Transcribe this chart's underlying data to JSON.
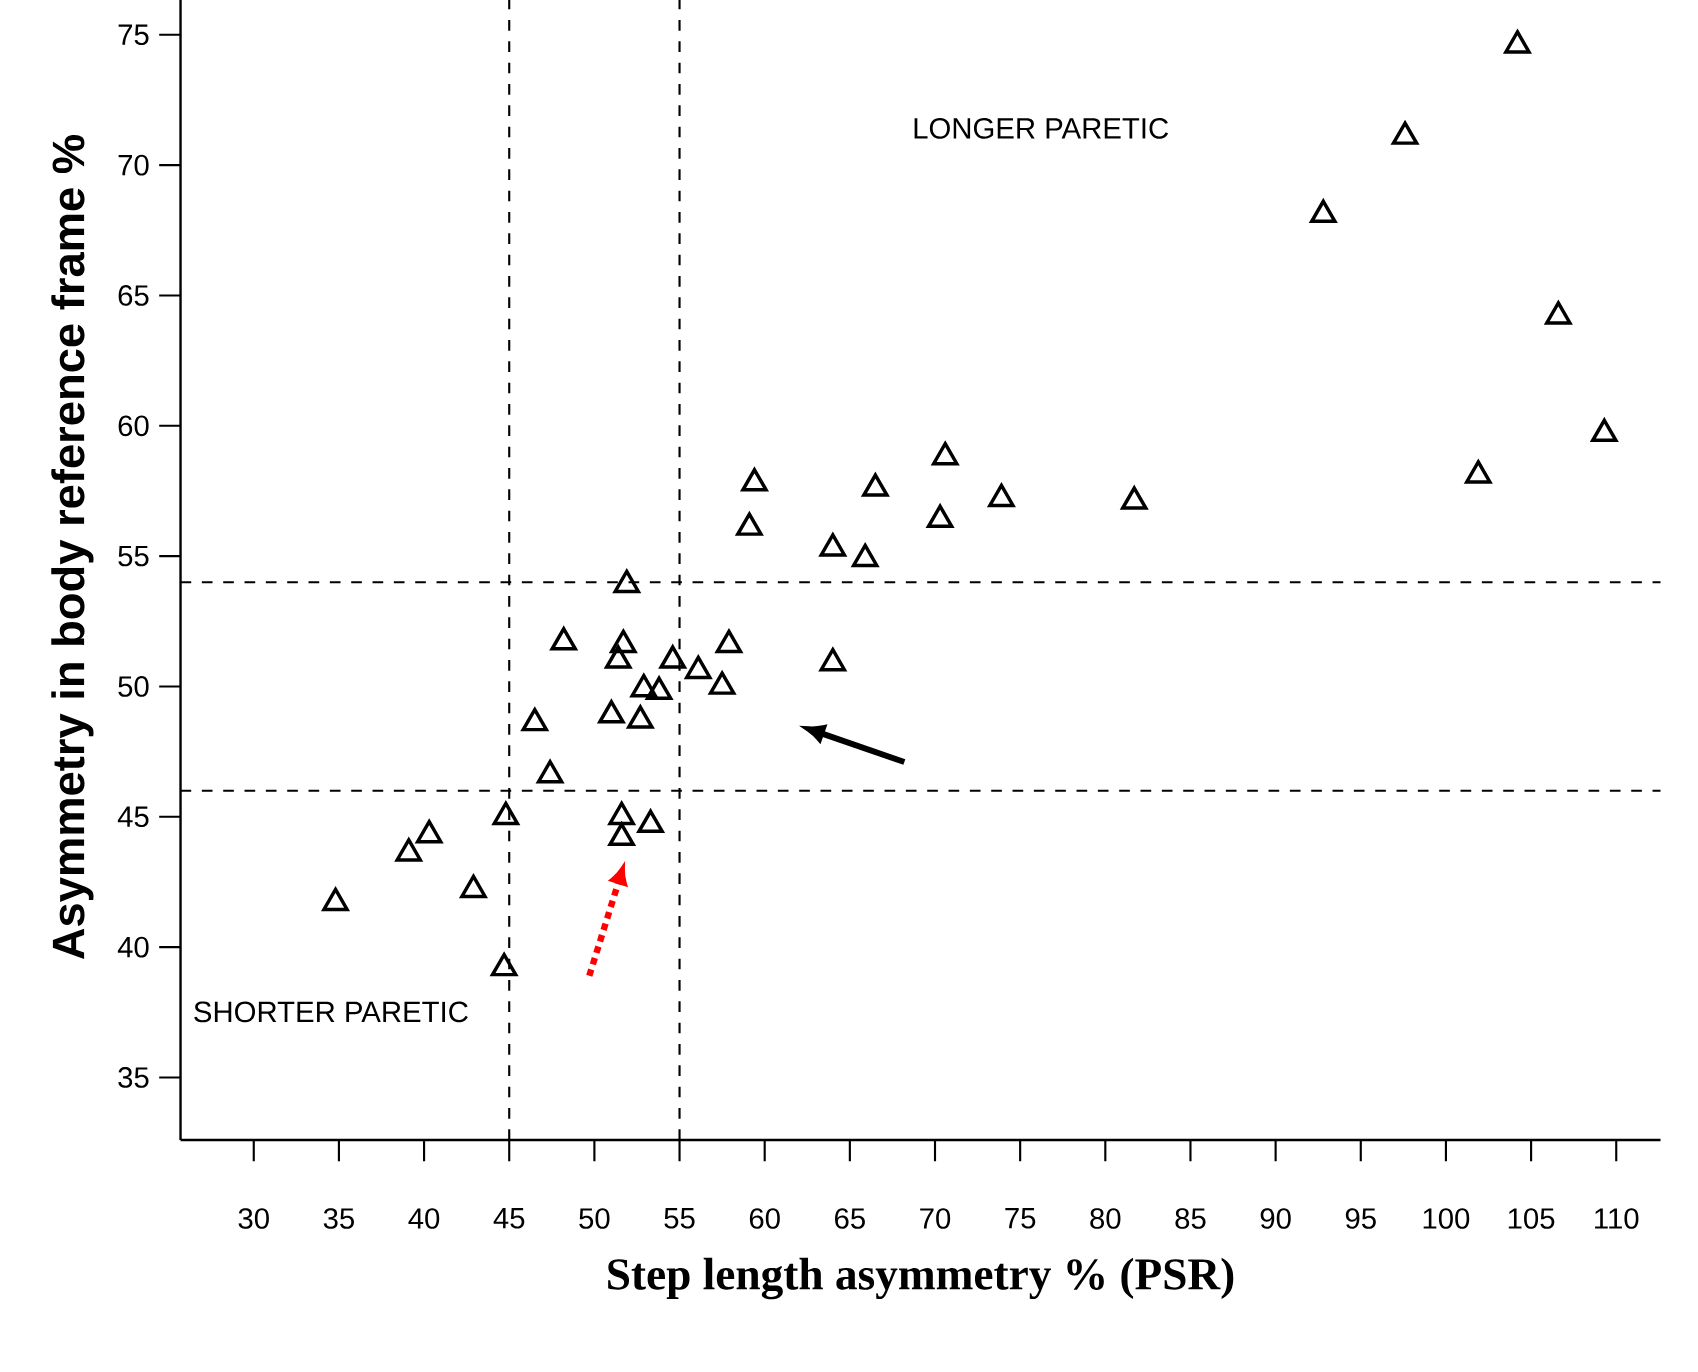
{
  "chart_data": {
    "type": "scatter",
    "xlabel": "Step length asymmetry % (PSR)",
    "ylabel": "Asymmetry in body reference frame %",
    "x": [
      34.8,
      39.1,
      40.3,
      42.9,
      44.7,
      44.8,
      46.5,
      47.4,
      48.2,
      51.0,
      51.4,
      51.6,
      51.6,
      51.7,
      51.9,
      52.7,
      52.9,
      53.3,
      53.8,
      54.6,
      56.1,
      57.5,
      57.9,
      59.1,
      59.4,
      64.0,
      64.0,
      65.9,
      66.5,
      70.3,
      70.6,
      73.9,
      81.7,
      92.8,
      97.6,
      101.9,
      104.2,
      106.6,
      109.3
    ],
    "values": [
      41.7,
      43.6,
      44.3,
      42.2,
      39.2,
      45.0,
      48.6,
      46.6,
      51.7,
      48.9,
      51.0,
      45.0,
      44.2,
      51.6,
      53.9,
      48.7,
      49.9,
      44.7,
      49.8,
      51.0,
      50.6,
      50.0,
      51.6,
      56.1,
      57.8,
      55.3,
      50.9,
      54.9,
      57.6,
      56.4,
      58.8,
      57.2,
      57.1,
      68.1,
      71.1,
      58.1,
      74.6,
      64.2,
      59.7
    ],
    "color": "#000000",
    "marker": "triangle",
    "xlim": [
      25.7,
      112.6
    ],
    "ylim": [
      32.6,
      78.1
    ],
    "xticks": [
      30,
      35,
      40,
      45,
      50,
      55,
      60,
      65,
      70,
      75,
      80,
      85,
      90,
      95,
      100,
      105,
      110
    ],
    "yticks": [
      35,
      40,
      45,
      50,
      55,
      60,
      65,
      70,
      75
    ],
    "grid": false,
    "ref_lines": [
      {
        "axis": "x",
        "value": 45,
        "line_style": "dashed"
      },
      {
        "axis": "x",
        "value": 55,
        "line_style": "dashed"
      },
      {
        "axis": "y",
        "value": 46,
        "line_style": "dashed"
      },
      {
        "axis": "y",
        "value": 54,
        "line_style": "dashed"
      }
    ],
    "annotations": [
      "LONGER PARETIC",
      "SHORTER PARETIC"
    ]
  }
}
